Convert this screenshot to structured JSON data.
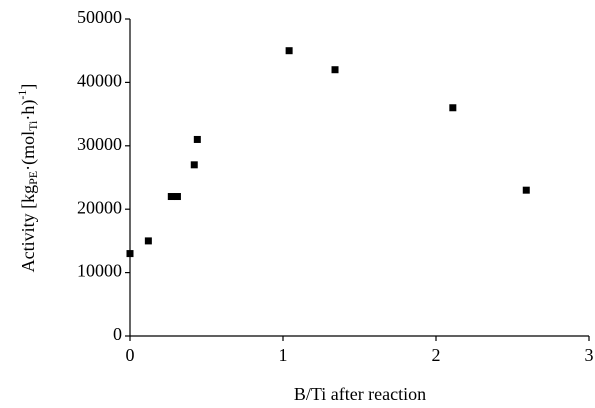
{
  "chart_data": {
    "type": "scatter",
    "xlabel": "B/Ti after reaction",
    "ylabel_parts": [
      "Activity [kg",
      "PE",
      "·(mol",
      "Ti",
      "·h)",
      "-1",
      "]"
    ],
    "x": [
      0,
      0.12,
      0.27,
      0.31,
      0.42,
      0.44,
      1.04,
      1.34,
      2.11,
      2.59
    ],
    "values": [
      13000,
      15000,
      22000,
      22000,
      27000,
      31000,
      45000,
      42000,
      36000,
      23000
    ],
    "color": "#000000",
    "xlim": [
      0,
      3
    ],
    "xticks": [
      0,
      1,
      2,
      3
    ],
    "ylim": [
      0,
      50000
    ],
    "yticks": [
      0,
      10000,
      20000,
      30000,
      40000,
      50000
    ]
  }
}
